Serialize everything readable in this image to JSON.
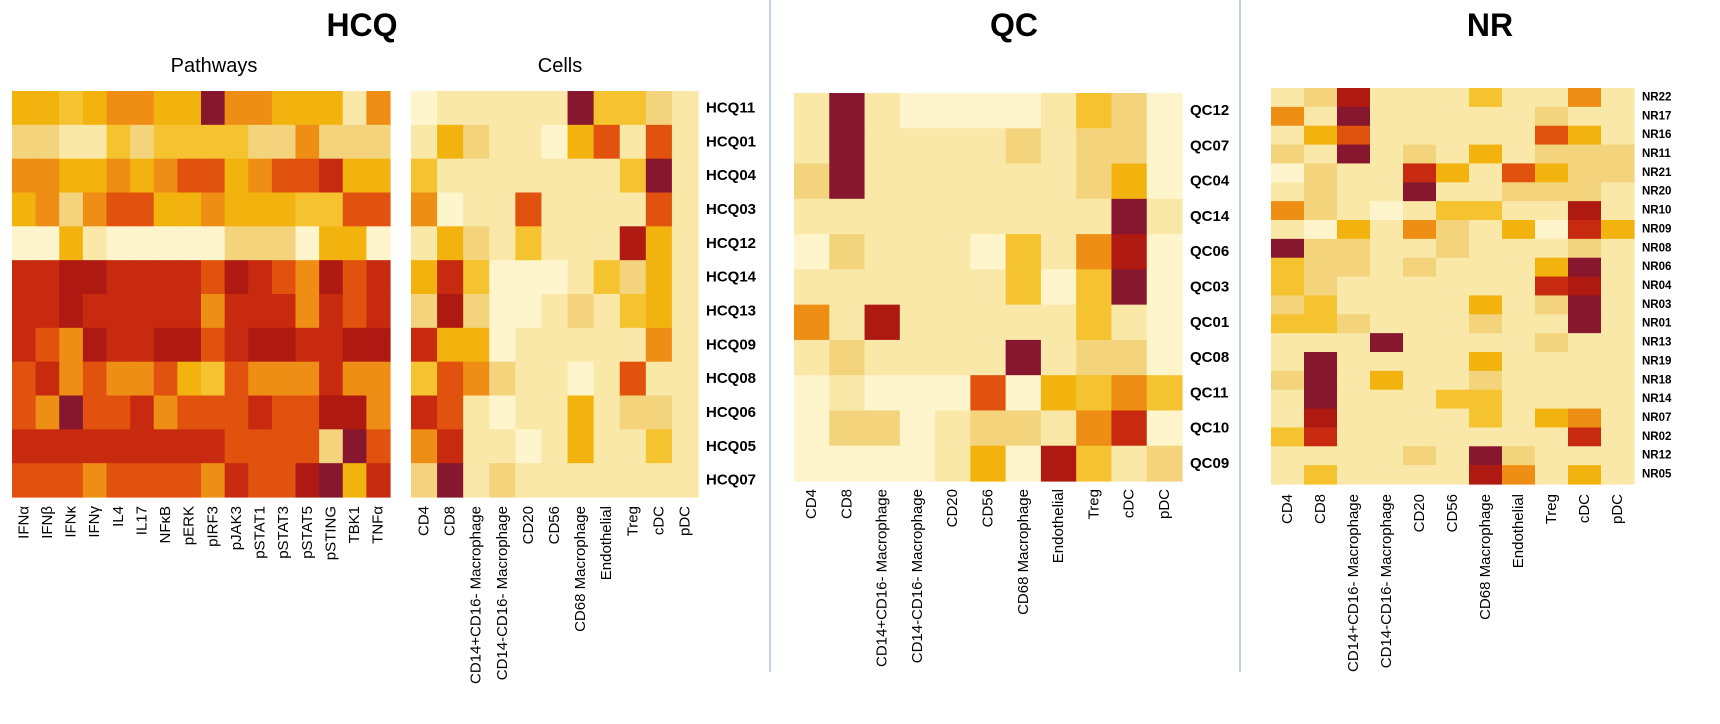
{
  "colors": {
    "scale": [
      "#FFF5CC",
      "#F9E8A7",
      "#F3D47C",
      "#F5C330",
      "#F3B30F",
      "#EF8E14",
      "#E0520D",
      "#C72A0F",
      "#AE1A12",
      "#87162F"
    ],
    "divider": "#AFC3DD"
  },
  "chart_data": [
    {
      "type": "heatmap",
      "group": "HCQ",
      "title": "HCQ",
      "subtitle": "Pathways",
      "columns": [
        "IFNα",
        "IFNβ",
        "IFNκ",
        "IFNγ",
        "IL4",
        "IL17",
        "NFκB",
        "pERK",
        "pIRF3",
        "pJAK3",
        "pSTAT1",
        "pSTAT3",
        "pSTAT5",
        "pSTING",
        "TBK1",
        "TNFα"
      ],
      "rows": [
        "HCQ11",
        "HCQ01",
        "HCQ04",
        "HCQ03",
        "HCQ12",
        "HCQ14",
        "HCQ13",
        "HCQ09",
        "HCQ08",
        "HCQ06",
        "HCQ05",
        "HCQ07"
      ],
      "row_labels_shown": false,
      "values": [
        [
          4,
          4,
          3,
          4,
          5,
          5,
          4,
          4,
          9,
          5,
          5,
          4,
          4,
          4,
          1,
          5
        ],
        [
          2,
          2,
          1,
          1,
          3,
          2,
          3,
          3,
          3,
          3,
          2,
          2,
          5,
          2,
          2,
          2
        ],
        [
          5,
          5,
          4,
          4,
          5,
          4,
          5,
          6,
          6,
          4,
          5,
          6,
          6,
          7,
          4,
          4
        ],
        [
          4,
          5,
          2,
          5,
          6,
          6,
          4,
          4,
          5,
          4,
          4,
          4,
          3,
          3,
          6,
          6
        ],
        [
          0,
          0,
          4,
          1,
          0,
          0,
          0,
          0,
          0,
          2,
          2,
          2,
          0,
          4,
          4,
          0
        ],
        [
          7,
          7,
          8,
          8,
          7,
          7,
          7,
          7,
          6,
          8,
          7,
          6,
          5,
          8,
          6,
          7
        ],
        [
          7,
          7,
          8,
          7,
          7,
          7,
          7,
          7,
          5,
          7,
          7,
          7,
          5,
          7,
          6,
          7
        ],
        [
          7,
          6,
          5,
          8,
          7,
          7,
          8,
          8,
          6,
          7,
          8,
          8,
          7,
          7,
          8,
          8
        ],
        [
          6,
          7,
          5,
          6,
          5,
          5,
          6,
          4,
          3,
          6,
          5,
          5,
          5,
          7,
          5,
          5
        ],
        [
          6,
          5,
          9,
          6,
          6,
          7,
          5,
          6,
          6,
          6,
          7,
          6,
          6,
          8,
          8,
          5
        ],
        [
          7,
          7,
          7,
          7,
          7,
          7,
          7,
          7,
          7,
          6,
          6,
          6,
          6,
          2,
          9,
          6
        ],
        [
          6,
          6,
          6,
          5,
          6,
          6,
          6,
          6,
          5,
          7,
          6,
          6,
          8,
          9,
          4,
          7
        ]
      ]
    },
    {
      "type": "heatmap",
      "group": "HCQ",
      "subtitle": "Cells",
      "columns": [
        "CD4",
        "CD8",
        "CD14+CD16- Macrophage",
        "CD14-CD16- Macrophage",
        "CD20",
        "CD56",
        "CD68 Macrophage",
        "Endothelial",
        "Treg",
        "cDC",
        "pDC"
      ],
      "rows": [
        "HCQ11",
        "HCQ01",
        "HCQ04",
        "HCQ03",
        "HCQ12",
        "HCQ14",
        "HCQ13",
        "HCQ09",
        "HCQ08",
        "HCQ06",
        "HCQ05",
        "HCQ07"
      ],
      "values": [
        [
          0,
          1,
          1,
          1,
          1,
          1,
          9,
          3,
          3,
          2,
          1
        ],
        [
          1,
          4,
          2,
          1,
          1,
          0,
          4,
          6,
          1,
          6,
          1
        ],
        [
          3,
          1,
          1,
          1,
          1,
          1,
          1,
          1,
          3,
          9,
          1
        ],
        [
          5,
          0,
          1,
          1,
          6,
          1,
          1,
          1,
          1,
          6,
          1
        ],
        [
          1,
          4,
          2,
          1,
          3,
          1,
          1,
          1,
          8,
          4,
          1
        ],
        [
          4,
          7,
          3,
          0,
          0,
          0,
          1,
          3,
          2,
          4,
          1
        ],
        [
          2,
          8,
          2,
          0,
          0,
          1,
          2,
          1,
          3,
          4,
          1
        ],
        [
          7,
          4,
          4,
          0,
          1,
          1,
          1,
          1,
          1,
          5,
          1
        ],
        [
          3,
          6,
          5,
          2,
          1,
          1,
          0,
          1,
          6,
          1,
          1
        ],
        [
          7,
          6,
          1,
          0,
          1,
          1,
          4,
          1,
          2,
          2,
          1
        ],
        [
          5,
          7,
          1,
          1,
          0,
          1,
          4,
          1,
          1,
          3,
          1
        ],
        [
          2,
          9,
          1,
          2,
          1,
          1,
          1,
          1,
          1,
          1,
          1
        ]
      ]
    },
    {
      "type": "heatmap",
      "group": "QC",
      "title": "QC",
      "columns": [
        "CD4",
        "CD8",
        "CD14+CD16- Macrophage",
        "CD14-CD16- Macrophage",
        "CD20",
        "CD56",
        "CD68 Macrophage",
        "Endothelial",
        "Treg",
        "cDC",
        "pDC"
      ],
      "rows": [
        "QC12",
        "QC07",
        "QC04",
        "QC14",
        "QC06",
        "QC03",
        "QC01",
        "QC08",
        "QC11",
        "QC10",
        "QC09"
      ],
      "values": [
        [
          1,
          9,
          1,
          0,
          0,
          0,
          0,
          1,
          3,
          2,
          0
        ],
        [
          1,
          9,
          1,
          1,
          1,
          1,
          2,
          1,
          2,
          2,
          0
        ],
        [
          2,
          9,
          1,
          1,
          1,
          1,
          1,
          1,
          2,
          4,
          0
        ],
        [
          1,
          1,
          1,
          1,
          1,
          1,
          1,
          1,
          1,
          9,
          1
        ],
        [
          0,
          2,
          1,
          1,
          1,
          0,
          3,
          1,
          5,
          8,
          0
        ],
        [
          1,
          1,
          1,
          1,
          1,
          1,
          3,
          0,
          3,
          9,
          0
        ],
        [
          5,
          1,
          8,
          1,
          1,
          1,
          1,
          1,
          3,
          1,
          0
        ],
        [
          1,
          2,
          1,
          1,
          1,
          1,
          9,
          1,
          2,
          2,
          0
        ],
        [
          0,
          1,
          0,
          0,
          0,
          6,
          0,
          4,
          3,
          5,
          3
        ],
        [
          0,
          2,
          2,
          0,
          1,
          2,
          2,
          1,
          5,
          7,
          0
        ],
        [
          0,
          0,
          0,
          0,
          1,
          4,
          0,
          8,
          3,
          1,
          2
        ]
      ]
    },
    {
      "type": "heatmap",
      "group": "NR",
      "title": "NR",
      "columns": [
        "CD4",
        "CD8",
        "CD14+CD16- Macrophage",
        "CD14-CD16- Macrophage",
        "CD20",
        "CD56",
        "CD68 Macrophage",
        "Endothelial",
        "Treg",
        "cDC",
        "pDC"
      ],
      "rows": [
        "NR22",
        "NR17",
        "NR16",
        "NR11",
        "NR21",
        "NR20",
        "NR10",
        "NR09",
        "NR08",
        "NR06",
        "NR04",
        "NR03",
        "NR01",
        "NR13",
        "NR19",
        "NR18",
        "NR14",
        "NR07",
        "NR02",
        "NR12",
        "NR05"
      ],
      "values": [
        [
          1,
          2,
          8,
          1,
          1,
          1,
          3,
          1,
          1,
          5,
          1
        ],
        [
          5,
          1,
          9,
          1,
          1,
          1,
          1,
          1,
          2,
          1,
          1
        ],
        [
          1,
          4,
          6,
          1,
          1,
          1,
          1,
          1,
          6,
          4,
          1
        ],
        [
          2,
          1,
          9,
          1,
          2,
          1,
          4,
          1,
          2,
          2,
          2
        ],
        [
          0,
          2,
          1,
          1,
          7,
          4,
          1,
          6,
          4,
          2,
          2
        ],
        [
          1,
          2,
          1,
          1,
          9,
          1,
          1,
          2,
          2,
          2,
          1
        ],
        [
          5,
          2,
          1,
          0,
          1,
          3,
          3,
          1,
          1,
          8,
          1
        ],
        [
          1,
          0,
          4,
          1,
          5,
          2,
          1,
          4,
          0,
          7,
          4
        ],
        [
          9,
          2,
          2,
          1,
          1,
          2,
          1,
          1,
          1,
          2,
          1
        ],
        [
          3,
          2,
          2,
          1,
          2,
          1,
          1,
          1,
          4,
          9,
          1
        ],
        [
          3,
          2,
          1,
          1,
          1,
          1,
          1,
          1,
          7,
          8,
          1
        ],
        [
          2,
          3,
          1,
          1,
          1,
          1,
          4,
          1,
          2,
          9,
          1
        ],
        [
          3,
          3,
          2,
          1,
          1,
          1,
          2,
          1,
          1,
          9,
          1
        ],
        [
          1,
          1,
          1,
          9,
          1,
          1,
          1,
          1,
          2,
          1,
          1
        ],
        [
          1,
          9,
          1,
          1,
          1,
          1,
          4,
          1,
          1,
          1,
          1
        ],
        [
          2,
          9,
          1,
          4,
          1,
          1,
          2,
          1,
          1,
          1,
          1
        ],
        [
          1,
          9,
          1,
          1,
          1,
          3,
          3,
          1,
          1,
          1,
          1
        ],
        [
          1,
          8,
          1,
          1,
          1,
          1,
          3,
          1,
          4,
          5,
          1
        ],
        [
          3,
          7,
          1,
          1,
          1,
          1,
          1,
          1,
          1,
          7,
          1
        ],
        [
          1,
          1,
          1,
          1,
          2,
          1,
          9,
          2,
          1,
          1,
          1
        ],
        [
          1,
          3,
          1,
          1,
          1,
          1,
          8,
          5,
          1,
          4,
          1
        ]
      ]
    }
  ]
}
